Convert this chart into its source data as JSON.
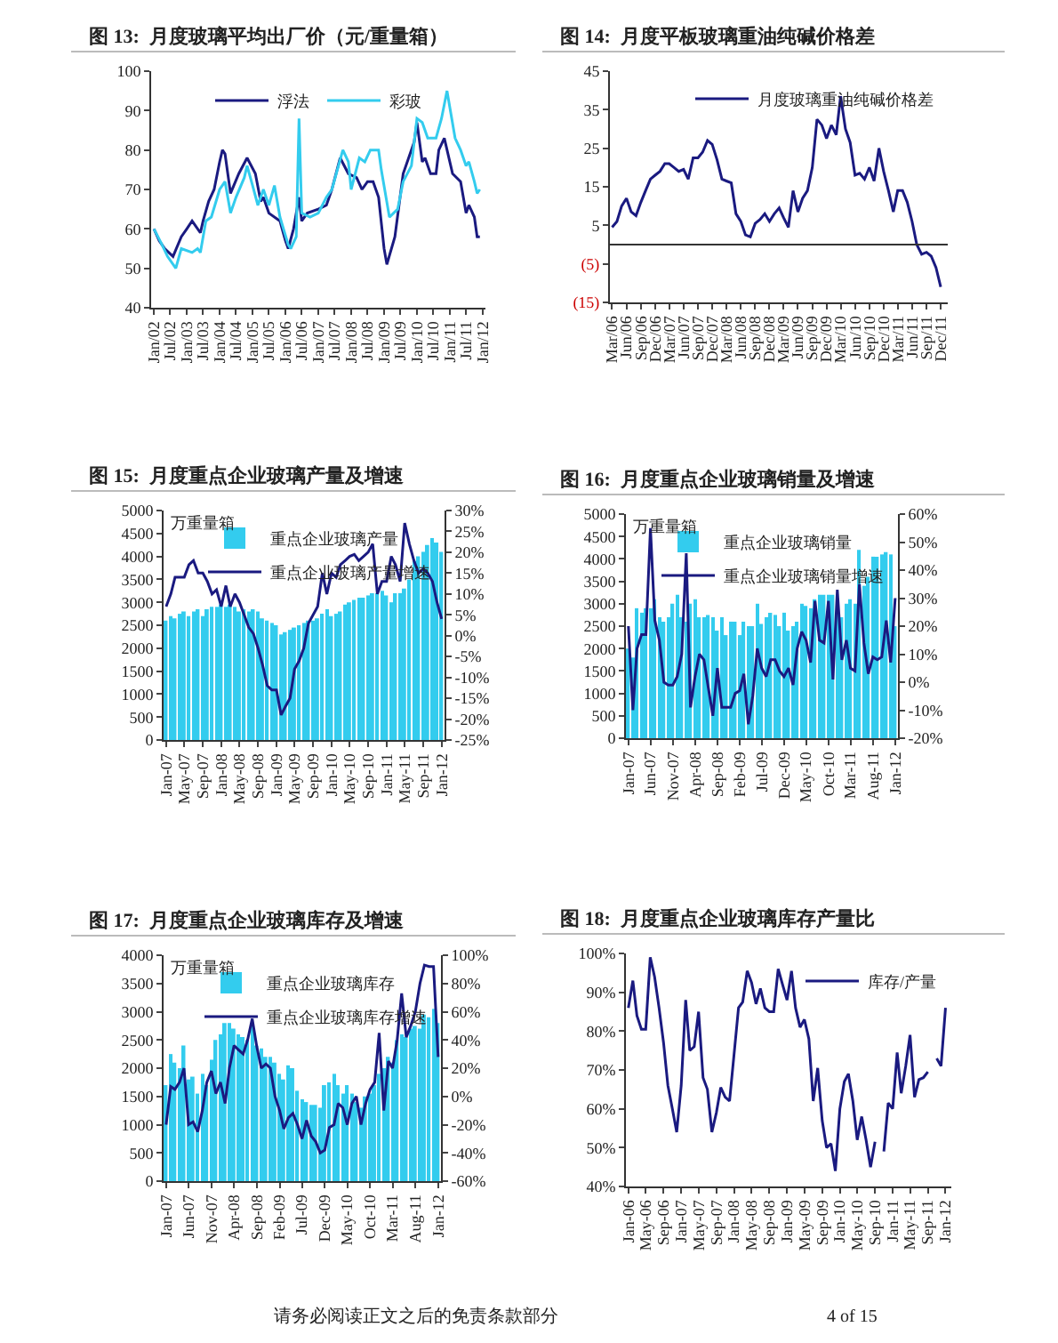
{
  "chart_data": [
    {
      "type": "line",
      "title": "图 13:  月度玻璃平均出厂价（元/重量箱）",
      "legend": "top",
      "marker": "none",
      "xlim": [
        "2001-12-01",
        "2012-02-01"
      ],
      "ylim": [
        40,
        100
      ],
      "yticks": [
        40,
        50,
        60,
        70,
        80,
        90,
        100
      ],
      "xticks": [
        {
          "value": "2002-01",
          "label": "Jan/02"
        },
        {
          "value": "2002-07",
          "label": "Jul/02"
        },
        {
          "value": "2003-01",
          "label": "Jan/03"
        },
        {
          "value": "2003-07",
          "label": "Jul/03"
        },
        {
          "value": "2004-01",
          "label": "Jan/04"
        },
        {
          "value": "2004-07",
          "label": "Jul/04"
        },
        {
          "value": "2005-01",
          "label": "Jan/05"
        },
        {
          "value": "2005-07",
          "label": "Jul/05"
        },
        {
          "value": "2006-01",
          "label": "Jan/06"
        },
        {
          "value": "2006-07",
          "label": "Jul/06"
        },
        {
          "value": "2007-01",
          "label": "Jan/07"
        },
        {
          "value": "2007-07",
          "label": "Jul/07"
        },
        {
          "value": "2008-01",
          "label": "Jan/08"
        },
        {
          "value": "2008-07",
          "label": "Jul/08"
        },
        {
          "value": "2009-01",
          "label": "Jan/09"
        },
        {
          "value": "2009-07",
          "label": "Jul/09"
        },
        {
          "value": "2010-01",
          "label": "Jan/10"
        },
        {
          "value": "2010-07",
          "label": "Jul/10"
        },
        {
          "value": "2011-01",
          "label": "Jan/11"
        },
        {
          "value": "2011-07",
          "label": "Jul/11"
        },
        {
          "value": "2012-01",
          "label": "Jan/12"
        }
      ],
      "series": [
        {
          "name": "浮法",
          "color": "#1a1a80",
          "x": [
            "2002-01",
            "2002-03",
            "2002-05",
            "2002-08",
            "2002-11",
            "2003-01",
            "2003-03",
            "2003-04",
            "2003-06",
            "2003-07",
            "2003-09",
            "2003-11",
            "2004-01",
            "2004-02",
            "2004-03",
            "2004-05",
            "2004-08",
            "2004-11",
            "2005-02",
            "2005-04",
            "2005-05",
            "2005-07",
            "2005-11",
            "2006-01",
            "2006-02",
            "2006-04",
            "2006-06",
            "2006-07",
            "2006-09",
            "2007-01",
            "2007-04",
            "2007-06",
            "2007-09",
            "2007-12",
            "2008-03",
            "2008-05",
            "2008-07",
            "2008-09",
            "2008-11",
            "2009-01",
            "2009-02",
            "2009-05",
            "2009-08",
            "2009-12",
            "2010-01",
            "2010-03",
            "2010-04",
            "2010-06",
            "2010-08",
            "2010-09",
            "2010-11",
            "2011-02",
            "2011-05",
            "2011-07",
            "2011-08",
            "2011-10",
            "2011-11",
            "2011-12"
          ],
          "values": [
            60,
            57,
            55,
            53,
            58,
            60,
            62,
            61,
            59,
            62,
            67,
            70,
            77,
            80,
            79,
            69,
            74,
            78,
            74,
            67,
            68,
            64,
            62,
            57,
            55,
            60,
            68,
            62,
            64,
            65,
            66,
            70,
            78,
            74,
            73,
            70,
            72,
            72,
            68,
            55,
            51,
            58,
            74,
            82,
            87,
            77,
            78,
            74,
            74,
            80,
            83,
            74,
            72,
            64,
            66,
            63,
            58,
            58
          ]
        },
        {
          "name": "彩玻",
          "color": "#33ccee",
          "x": [
            "2002-01",
            "2002-04",
            "2002-06",
            "2002-09",
            "2002-11",
            "2003-03",
            "2003-05",
            "2003-06",
            "2003-08",
            "2003-10",
            "2004-01",
            "2004-03",
            "2004-05",
            "2004-07",
            "2004-10",
            "2004-11",
            "2005-01",
            "2005-03",
            "2005-05",
            "2005-07",
            "2005-09",
            "2005-11",
            "2006-02",
            "2006-03",
            "2006-05",
            "2006-06",
            "2006-07",
            "2006-10",
            "2007-01",
            "2007-04",
            "2007-06",
            "2007-10",
            "2007-12",
            "2008-01",
            "2008-04",
            "2008-06",
            "2008-08",
            "2008-11",
            "2008-12",
            "2009-03",
            "2009-06",
            "2009-08",
            "2009-11",
            "2009-12",
            "2010-01",
            "2010-03",
            "2010-05",
            "2010-08",
            "2010-10",
            "2010-12",
            "2011-03",
            "2011-05",
            "2011-07",
            "2011-08",
            "2011-10",
            "2011-11",
            "2011-12"
          ],
          "values": [
            60,
            56,
            53,
            50,
            55,
            54,
            55,
            54,
            62,
            63,
            70,
            72,
            64,
            68,
            73,
            76,
            71,
            66,
            70,
            66,
            71,
            63,
            56,
            55,
            58,
            88,
            64,
            63,
            64,
            68,
            70,
            80,
            77,
            70,
            78,
            77,
            80,
            80,
            75,
            63,
            65,
            72,
            76,
            82,
            88,
            87,
            83,
            83,
            88,
            95,
            83,
            80,
            76,
            77,
            72,
            69,
            70
          ]
        }
      ]
    },
    {
      "type": "line",
      "title": "图 14:  月度平板玻璃重油纯碱价格差",
      "legend": "top right",
      "marker": "none",
      "xlim": [
        "2006-02-15",
        "2012-01-15"
      ],
      "ylim": [
        -15,
        45
      ],
      "yticks": [
        45,
        35,
        25,
        15,
        5,
        {
          "value": -5,
          "label": "(5)"
        },
        {
          "value": -15,
          "label": "(15)"
        }
      ],
      "ref_lines": [
        {
          "axis": "y",
          "value": 0
        }
      ],
      "xticks": [
        {
          "value": "2006-03",
          "label": "Mar/06"
        },
        {
          "value": "2006-06",
          "label": "Jun/06"
        },
        {
          "value": "2006-09",
          "label": "Sep/06"
        },
        {
          "value": "2006-12",
          "label": "Dec/06"
        },
        {
          "value": "2007-03",
          "label": "Mar/07"
        },
        {
          "value": "2007-06",
          "label": "Jun/07"
        },
        {
          "value": "2007-09",
          "label": "Sep/07"
        },
        {
          "value": "2007-12",
          "label": "Dec/07"
        },
        {
          "value": "2008-03",
          "label": "Mar/08"
        },
        {
          "value": "2008-06",
          "label": "Jun/08"
        },
        {
          "value": "2008-09",
          "label": "Sep/08"
        },
        {
          "value": "2008-12",
          "label": "Dec/08"
        },
        {
          "value": "2009-03",
          "label": "Mar/09"
        },
        {
          "value": "2009-06",
          "label": "Jun/09"
        },
        {
          "value": "2009-09",
          "label": "Sep/09"
        },
        {
          "value": "2009-12",
          "label": "Dec/09"
        },
        {
          "value": "2010-03",
          "label": "Mar/10"
        },
        {
          "value": "2010-06",
          "label": "Jun/10"
        },
        {
          "value": "2010-09",
          "label": "Sep/10"
        },
        {
          "value": "2010-12",
          "label": "Dec/10"
        },
        {
          "value": "2011-03",
          "label": "Mar/11"
        },
        {
          "value": "2011-06",
          "label": "Jun/11"
        },
        {
          "value": "2011-09",
          "label": "Sep/11"
        },
        {
          "value": "2011-12",
          "label": "Dec/11"
        }
      ],
      "x": [
        "2006-03",
        "2006-04",
        "2006-05",
        "2006-06",
        "2006-07",
        "2006-08",
        "2006-09",
        "2006-10",
        "2006-11",
        "2006-12",
        "2007-01",
        "2007-02",
        "2007-03",
        "2007-04",
        "2007-05",
        "2007-06",
        "2007-07",
        "2007-08",
        "2007-09",
        "2007-10",
        "2007-11",
        "2007-12",
        "2008-01",
        "2008-02",
        "2008-03",
        "2008-04",
        "2008-05",
        "2008-06",
        "2008-07",
        "2008-08",
        "2008-09",
        "2008-10",
        "2008-11",
        "2008-12",
        "2009-01",
        "2009-02",
        "2009-03",
        "2009-04",
        "2009-05",
        "2009-06",
        "2009-07",
        "2009-08",
        "2009-09",
        "2009-10",
        "2009-11",
        "2009-12",
        "2010-01",
        "2010-02",
        "2010-03",
        "2010-04",
        "2010-05",
        "2010-06",
        "2010-07",
        "2010-08",
        "2010-09",
        "2010-10",
        "2010-11",
        "2010-12",
        "2011-01",
        "2011-02",
        "2011-03",
        "2011-04",
        "2011-05",
        "2011-06",
        "2011-07",
        "2011-08",
        "2011-09",
        "2011-10",
        "2011-11",
        "2011-12"
      ],
      "series": [
        {
          "name": "月度玻璃重油纯碱价格差",
          "color": "#1a1a80",
          "values": [
            4.5,
            6,
            10,
            12,
            8.5,
            7.5,
            11,
            14,
            17,
            18,
            19,
            21,
            21,
            20,
            19,
            19.5,
            17,
            22.5,
            22.5,
            24,
            27,
            26,
            22,
            17,
            16.5,
            16,
            8,
            6,
            2.5,
            2,
            5.5,
            6.5,
            8,
            6,
            8,
            9.5,
            7,
            4.5,
            14,
            8.5,
            12,
            14,
            20,
            32.5,
            31,
            27.5,
            31,
            28.5,
            38.5,
            30,
            26.5,
            18,
            18.5,
            17,
            20,
            16.5,
            25,
            19,
            14,
            8.5,
            14,
            14,
            11,
            6,
            0,
            -2.5,
            -2,
            -3,
            -6,
            -11
          ]
        }
      ]
    },
    {
      "type": "bar",
      "title": "图 15:  月度重点企业玻璃产量及增速",
      "ylabel": "万重量箱",
      "legend": "top right",
      "marker": "none",
      "xlim": [
        "2006-12-15",
        "2012-01-20"
      ],
      "ylim": [
        0,
        5000
      ],
      "yticks": [
        0,
        500,
        1000,
        1500,
        2000,
        2500,
        3000,
        3500,
        4000,
        4500,
        5000
      ],
      "y2lim": [
        -25,
        30
      ],
      "y2ticks": [
        {
          "value": -25,
          "label": "-25%"
        },
        {
          "value": -20,
          "label": "-20%"
        },
        {
          "value": -15,
          "label": "-15%"
        },
        {
          "value": -10,
          "label": "-10%"
        },
        {
          "value": -5,
          "label": "-5%"
        },
        {
          "value": 0,
          "label": "0%"
        },
        {
          "value": 5,
          "label": "5%"
        },
        {
          "value": 10,
          "label": "10%"
        },
        {
          "value": 15,
          "label": "15%"
        },
        {
          "value": 20,
          "label": "20%"
        },
        {
          "value": 25,
          "label": "25%"
        },
        {
          "value": 30,
          "label": "30%"
        }
      ],
      "xticks": [
        {
          "value": "2007-01",
          "label": "Jan-07"
        },
        {
          "value": "2007-05",
          "label": "May-07"
        },
        {
          "value": "2007-09",
          "label": "Sep-07"
        },
        {
          "value": "2008-01",
          "label": "Jan-08"
        },
        {
          "value": "2008-05",
          "label": "May-08"
        },
        {
          "value": "2008-09",
          "label": "Sep-08"
        },
        {
          "value": "2009-01",
          "label": "Jan-09"
        },
        {
          "value": "2009-05",
          "label": "May-09"
        },
        {
          "value": "2009-09",
          "label": "Sep-09"
        },
        {
          "value": "2010-01",
          "label": "Jan-10"
        },
        {
          "value": "2010-05",
          "label": "May-10"
        },
        {
          "value": "2010-09",
          "label": "Sep-10"
        },
        {
          "value": "2011-01",
          "label": "Jan-11"
        },
        {
          "value": "2011-05",
          "label": "May-11"
        },
        {
          "value": "2011-09",
          "label": "Sep-11"
        },
        {
          "value": "2012-01",
          "label": "Jan-12"
        }
      ],
      "x": [
        "2007-01",
        "2007-02",
        "2007-03",
        "2007-04",
        "2007-05",
        "2007-06",
        "2007-07",
        "2007-08",
        "2007-09",
        "2007-10",
        "2007-11",
        "2007-12",
        "2008-01",
        "2008-02",
        "2008-03",
        "2008-04",
        "2008-05",
        "2008-06",
        "2008-07",
        "2008-08",
        "2008-09",
        "2008-10",
        "2008-11",
        "2008-12",
        "2009-01",
        "2009-02",
        "2009-03",
        "2009-04",
        "2009-05",
        "2009-06",
        "2009-07",
        "2009-08",
        "2009-09",
        "2009-10",
        "2009-11",
        "2009-12",
        "2010-01",
        "2010-02",
        "2010-03",
        "2010-04",
        "2010-05",
        "2010-06",
        "2010-07",
        "2010-08",
        "2010-09",
        "2010-10",
        "2010-11",
        "2010-12",
        "2011-01",
        "2011-02",
        "2011-03",
        "2011-04",
        "2011-05",
        "2011-06",
        "2011-07",
        "2011-08",
        "2011-09",
        "2011-10",
        "2011-11",
        "2011-12",
        "2012-01"
      ],
      "series": [
        {
          "name": "重点企业玻璃产量",
          "type": "bar",
          "color": "#33ccee",
          "values": [
            2600,
            2700,
            2650,
            2750,
            2800,
            2700,
            2800,
            2850,
            2700,
            2850,
            2900,
            2900,
            2950,
            2900,
            2950,
            2900,
            2800,
            2850,
            2800,
            2850,
            2800,
            2650,
            2600,
            2550,
            2500,
            2300,
            2350,
            2400,
            2450,
            2500,
            2550,
            2600,
            2600,
            2650,
            2750,
            2850,
            2700,
            2750,
            2800,
            2950,
            3000,
            3050,
            3100,
            3100,
            3150,
            3200,
            3200,
            3250,
            3150,
            3000,
            3200,
            3200,
            3300,
            3500,
            3900,
            4000,
            4100,
            4250,
            4400,
            4300,
            4100
          ]
        },
        {
          "name": "重点企业玻璃产量增速",
          "type": "line",
          "axis": "y2",
          "color": "#1a1a80",
          "values": [
            7,
            10,
            14,
            14,
            14,
            17,
            18,
            15,
            15,
            13,
            10,
            11,
            7,
            12,
            7,
            10,
            8,
            5,
            2,
            0.5,
            -3,
            -7,
            -12,
            -13,
            -13,
            -19,
            -17,
            -15,
            -8,
            -6,
            -3,
            3,
            5,
            7,
            15,
            10,
            15,
            14,
            17,
            18,
            19,
            19.5,
            18,
            19,
            20,
            22,
            10,
            13,
            13,
            19,
            17,
            13,
            27,
            22,
            18,
            15,
            16,
            15,
            13,
            8,
            4
          ]
        }
      ]
    },
    {
      "type": "bar",
      "title": "图 16:  月度重点企业玻璃销量及增速",
      "ylabel": "万重量箱",
      "legend": "top right",
      "marker": "none",
      "xlim": [
        "2006-12-15",
        "2012-01-20"
      ],
      "ylim": [
        0,
        5000
      ],
      "yticks": [
        0,
        500,
        1000,
        1500,
        2000,
        2500,
        3000,
        3500,
        4000,
        4500,
        5000
      ],
      "y2lim": [
        -20,
        60
      ],
      "y2ticks": [
        {
          "value": -20,
          "label": "-20%"
        },
        {
          "value": -10,
          "label": "-10%"
        },
        {
          "value": 0,
          "label": "0%"
        },
        {
          "value": 10,
          "label": "10%"
        },
        {
          "value": 20,
          "label": "20%"
        },
        {
          "value": 30,
          "label": "30%"
        },
        {
          "value": 40,
          "label": "40%"
        },
        {
          "value": 50,
          "label": "50%"
        },
        {
          "value": 60,
          "label": "60%"
        }
      ],
      "xticks": [
        {
          "value": "2007-01",
          "label": "Jan-07"
        },
        {
          "value": "2007-06",
          "label": "Jun-07"
        },
        {
          "value": "2007-11",
          "label": "Nov-07"
        },
        {
          "value": "2008-04",
          "label": "Apr-08"
        },
        {
          "value": "2008-09",
          "label": "Sep-08"
        },
        {
          "value": "2009-02",
          "label": "Feb-09"
        },
        {
          "value": "2009-07",
          "label": "Jul-09"
        },
        {
          "value": "2009-12",
          "label": "Dec-09"
        },
        {
          "value": "2010-05",
          "label": "May-10"
        },
        {
          "value": "2010-10",
          "label": "Oct-10"
        },
        {
          "value": "2011-03",
          "label": "Mar-11"
        },
        {
          "value": "2011-08",
          "label": "Aug-11"
        },
        {
          "value": "2012-01",
          "label": "Jan-12"
        }
      ],
      "x": [
        "2007-01",
        "2007-02",
        "2007-03",
        "2007-04",
        "2007-05",
        "2007-06",
        "2007-07",
        "2007-08",
        "2007-09",
        "2007-10",
        "2007-11",
        "2007-12",
        "2008-01",
        "2008-02",
        "2008-03",
        "2008-04",
        "2008-05",
        "2008-06",
        "2008-07",
        "2008-08",
        "2008-09",
        "2008-10",
        "2008-11",
        "2008-12",
        "2009-01",
        "2009-02",
        "2009-03",
        "2009-04",
        "2009-05",
        "2009-06",
        "2009-07",
        "2009-08",
        "2009-09",
        "2009-10",
        "2009-11",
        "2009-12",
        "2010-01",
        "2010-02",
        "2010-03",
        "2010-04",
        "2010-05",
        "2010-06",
        "2010-07",
        "2010-08",
        "2010-09",
        "2010-10",
        "2010-11",
        "2010-12",
        "2011-01",
        "2011-02",
        "2011-03",
        "2011-04",
        "2011-05",
        "2011-06",
        "2011-07",
        "2011-08",
        "2011-09",
        "2011-10",
        "2011-11",
        "2011-12",
        "2012-01"
      ],
      "series": [
        {
          "name": "重点企业玻璃销量",
          "type": "bar",
          "color": "#33ccee",
          "values": [
            2000,
            1800,
            2900,
            2800,
            2900,
            2900,
            3100,
            2700,
            2600,
            2700,
            3000,
            3200,
            2700,
            2600,
            3000,
            3100,
            2700,
            2700,
            2750,
            2700,
            2400,
            2700,
            2300,
            2600,
            2600,
            2300,
            2600,
            2500,
            2500,
            3000,
            2550,
            2700,
            2800,
            2750,
            2500,
            2800,
            2400,
            2500,
            2600,
            3000,
            2950,
            2900,
            3100,
            3200,
            3200,
            3200,
            3200,
            2900,
            2700,
            3000,
            3100,
            3000,
            4200,
            3400,
            3600,
            4050,
            4050,
            4100,
            4150,
            4100,
            2500
          ]
        },
        {
          "name": "重点企业玻璃销量增速",
          "type": "line",
          "axis": "y2",
          "color": "#1a1a80",
          "values": [
            20,
            -10,
            12,
            17,
            17,
            55,
            22,
            15,
            0,
            -1,
            -1,
            2,
            10,
            46,
            -9,
            2,
            10,
            8,
            -2,
            -12,
            5,
            -9,
            -9,
            -9,
            -4,
            -3,
            3,
            -15,
            -5,
            12,
            5,
            2,
            8,
            8,
            4,
            2,
            5,
            -1,
            12,
            18,
            15,
            7,
            29,
            15,
            14,
            29,
            1,
            33,
            8,
            15,
            5,
            4,
            35,
            14,
            3,
            9,
            8,
            9,
            22,
            7,
            30
          ]
        }
      ]
    },
    {
      "type": "bar",
      "title": "图 17:  月度重点企业玻璃库存及增速",
      "ylabel": "万重量箱",
      "legend": "top right",
      "marker": "none",
      "annotations": [
        "请务必阅读正文之后的免责条款部分"
      ],
      "xlim": [
        "2006-12-15",
        "2012-01-20"
      ],
      "ylim": [
        0,
        4000
      ],
      "yticks": [
        0,
        500,
        1000,
        1500,
        2000,
        2500,
        3000,
        3500,
        4000
      ],
      "y2lim": [
        -60,
        100
      ],
      "y2ticks": [
        {
          "value": -60,
          "label": "-60%"
        },
        {
          "value": -40,
          "label": "-40%"
        },
        {
          "value": -20,
          "label": "-20%"
        },
        {
          "value": 0,
          "label": "0%"
        },
        {
          "value": 20,
          "label": "20%"
        },
        {
          "value": 40,
          "label": "40%"
        },
        {
          "value": 60,
          "label": "60%"
        },
        {
          "value": 80,
          "label": "80%"
        },
        {
          "value": 100,
          "label": "100%"
        }
      ],
      "xticks": [
        {
          "value": "2007-01",
          "label": "Jan-07"
        },
        {
          "value": "2007-06",
          "label": "Jun-07"
        },
        {
          "value": "2007-11",
          "label": "Nov-07"
        },
        {
          "value": "2008-04",
          "label": "Apr-08"
        },
        {
          "value": "2008-09",
          "label": "Sep-08"
        },
        {
          "value": "2009-02",
          "label": "Feb-09"
        },
        {
          "value": "2009-07",
          "label": "Jul-09"
        },
        {
          "value": "2009-12",
          "label": "Dec-09"
        },
        {
          "value": "2010-05",
          "label": "May-10"
        },
        {
          "value": "2010-10",
          "label": "Oct-10"
        },
        {
          "value": "2011-03",
          "label": "Mar-11"
        },
        {
          "value": "2011-08",
          "label": "Aug-11"
        },
        {
          "value": "2012-01",
          "label": "Jan-12"
        }
      ],
      "x": [
        "2007-01",
        "2007-02",
        "2007-03",
        "2007-04",
        "2007-05",
        "2007-06",
        "2007-07",
        "2007-08",
        "2007-09",
        "2007-10",
        "2007-11",
        "2007-12",
        "2008-01",
        "2008-02",
        "2008-03",
        "2008-04",
        "2008-05",
        "2008-06",
        "2008-07",
        "2008-08",
        "2008-09",
        "2008-10",
        "2008-11",
        "2008-12",
        "2009-01",
        "2009-02",
        "2009-03",
        "2009-04",
        "2009-05",
        "2009-06",
        "2009-07",
        "2009-08",
        "2009-09",
        "2009-10",
        "2009-11",
        "2009-12",
        "2010-01",
        "2010-02",
        "2010-03",
        "2010-04",
        "2010-05",
        "2010-06",
        "2010-07",
        "2010-08",
        "2010-09",
        "2010-10",
        "2010-11",
        "2010-12",
        "2011-01",
        "2011-02",
        "2011-03",
        "2011-04",
        "2011-05",
        "2011-06",
        "2011-07",
        "2011-08",
        "2011-09",
        "2011-10",
        "2011-11",
        "2011-12",
        "2012-01"
      ],
      "series": [
        {
          "name": "重点企业玻璃库存",
          "type": "bar",
          "color": "#33ccee",
          "values": [
            1700,
            2250,
            2100,
            2000,
            2400,
            1800,
            1850,
            1550,
            1900,
            1700,
            2150,
            2500,
            2600,
            2800,
            2800,
            2700,
            2600,
            2550,
            2500,
            2800,
            2400,
            2350,
            2200,
            2200,
            2100,
            1900,
            1800,
            2050,
            2000,
            1600,
            1450,
            1400,
            1350,
            1350,
            1300,
            1700,
            1750,
            1900,
            1700,
            1550,
            1700,
            1550,
            1400,
            1300,
            1500,
            1550,
            1700,
            1900,
            2000,
            2200,
            2100,
            2500,
            2600,
            2550,
            2700,
            2750,
            2700,
            2950,
            2900,
            3050,
            2800
          ]
        },
        {
          "name": "重点企业玻璃库存增速",
          "type": "line",
          "axis": "y2",
          "color": "#1a1a80",
          "values": [
            -20,
            7,
            5,
            10,
            20,
            -20,
            -18,
            -25,
            -10,
            10,
            18,
            2,
            10,
            -5,
            20,
            36,
            33,
            30,
            40,
            55,
            35,
            20,
            23,
            20,
            0,
            -10,
            -23,
            -15,
            -12,
            -20,
            -30,
            -17,
            -28,
            -32,
            -40,
            -38,
            -22,
            -20,
            -5,
            -8,
            -20,
            -5,
            0,
            -20,
            -5,
            5,
            10,
            45,
            -10,
            25,
            20,
            40,
            73,
            42,
            50,
            60,
            80,
            93,
            92,
            92,
            28
          ]
        }
      ]
    },
    {
      "type": "line",
      "title": "图 18:  月度重点企业玻璃库存产量比",
      "legend": "top right",
      "marker": "none",
      "annotations": [
        "4 of 15"
      ],
      "xlim": [
        "2005-12-15",
        "2012-02-10"
      ],
      "ylim": [
        40,
        100
      ],
      "yticks": [
        {
          "value": 40,
          "label": "40%"
        },
        {
          "value": 50,
          "label": "50%"
        },
        {
          "value": 60,
          "label": "60%"
        },
        {
          "value": 70,
          "label": "70%"
        },
        {
          "value": 80,
          "label": "80%"
        },
        {
          "value": 90,
          "label": "90%"
        },
        {
          "value": 100,
          "label": "100%"
        }
      ],
      "xticks": [
        {
          "value": "2006-01",
          "label": "Jan-06"
        },
        {
          "value": "2006-05",
          "label": "May-06"
        },
        {
          "value": "2006-09",
          "label": "Sep-06"
        },
        {
          "value": "2007-01",
          "label": "Jan-07"
        },
        {
          "value": "2007-05",
          "label": "May-07"
        },
        {
          "value": "2007-09",
          "label": "Sep-07"
        },
        {
          "value": "2008-01",
          "label": "Jan-08"
        },
        {
          "value": "2008-05",
          "label": "May-08"
        },
        {
          "value": "2008-09",
          "label": "Sep-08"
        },
        {
          "value": "2009-01",
          "label": "Jan-09"
        },
        {
          "value": "2009-05",
          "label": "May-09"
        },
        {
          "value": "2009-09",
          "label": "Sep-09"
        },
        {
          "value": "2010-01",
          "label": "Jan-10"
        },
        {
          "value": "2010-05",
          "label": "May-10"
        },
        {
          "value": "2010-09",
          "label": "Sep-10"
        },
        {
          "value": "2011-01",
          "label": "Jan-11"
        },
        {
          "value": "2011-05",
          "label": "May-11"
        },
        {
          "value": "2011-09",
          "label": "Sep-11"
        },
        {
          "value": "2012-01",
          "label": "Jan-12"
        }
      ],
      "x": [
        "2006-01",
        "2006-02",
        "2006-03",
        "2006-04",
        "2006-05",
        "2006-06",
        "2006-07",
        "2006-08",
        "2006-09",
        "2006-10",
        "2006-11",
        "2006-12",
        "2007-01",
        "2007-02",
        "2007-03",
        "2007-04",
        "2007-05",
        "2007-06",
        "2007-07",
        "2007-08",
        "2007-09",
        "2007-10",
        "2007-11",
        "2007-12",
        "2008-01",
        "2008-02",
        "2008-03",
        "2008-04",
        "2008-05",
        "2008-06",
        "2008-07",
        "2008-08",
        "2008-09",
        "2008-10",
        "2008-11",
        "2008-12",
        "2009-01",
        "2009-02",
        "2009-03",
        "2009-04",
        "2009-05",
        "2009-06",
        "2009-07",
        "2009-08",
        "2009-09",
        "2009-10",
        "2009-11",
        "2009-12",
        "2010-01",
        "2010-02",
        "2010-03",
        "2010-04",
        "2010-05",
        "2010-06",
        "2010-07",
        "2010-08",
        "2010-09",
        "2010-10",
        "2010-11",
        "2010-12",
        "2011-01",
        "2011-02",
        "2011-03",
        "2011-04",
        "2011-05",
        "2011-06",
        "2011-07",
        "2011-08",
        "2011-09",
        "2011-10",
        "2011-11",
        "2011-12",
        "2012-01"
      ],
      "series": [
        {
          "name": "库存/产量",
          "color": "#1a1a80",
          "values": [
            86,
            93,
            84,
            80.5,
            80.5,
            99,
            94,
            86,
            77,
            66,
            60,
            54,
            66,
            88,
            75,
            76,
            85,
            68,
            65,
            54,
            59,
            65.5,
            63,
            62,
            74,
            86,
            87.5,
            95.5,
            92.5,
            87,
            91,
            86,
            85,
            85,
            96,
            92,
            88,
            95.5,
            86,
            81,
            83,
            78,
            62,
            70.5,
            57,
            50,
            51,
            44,
            60,
            67,
            69,
            62,
            52,
            58,
            52,
            45,
            51.5,
            null,
            49,
            61.5,
            60,
            74.5,
            64,
            71,
            79,
            63,
            67.5,
            68,
            69.5,
            null,
            73,
            71,
            86
          ]
        }
      ]
    }
  ]
}
